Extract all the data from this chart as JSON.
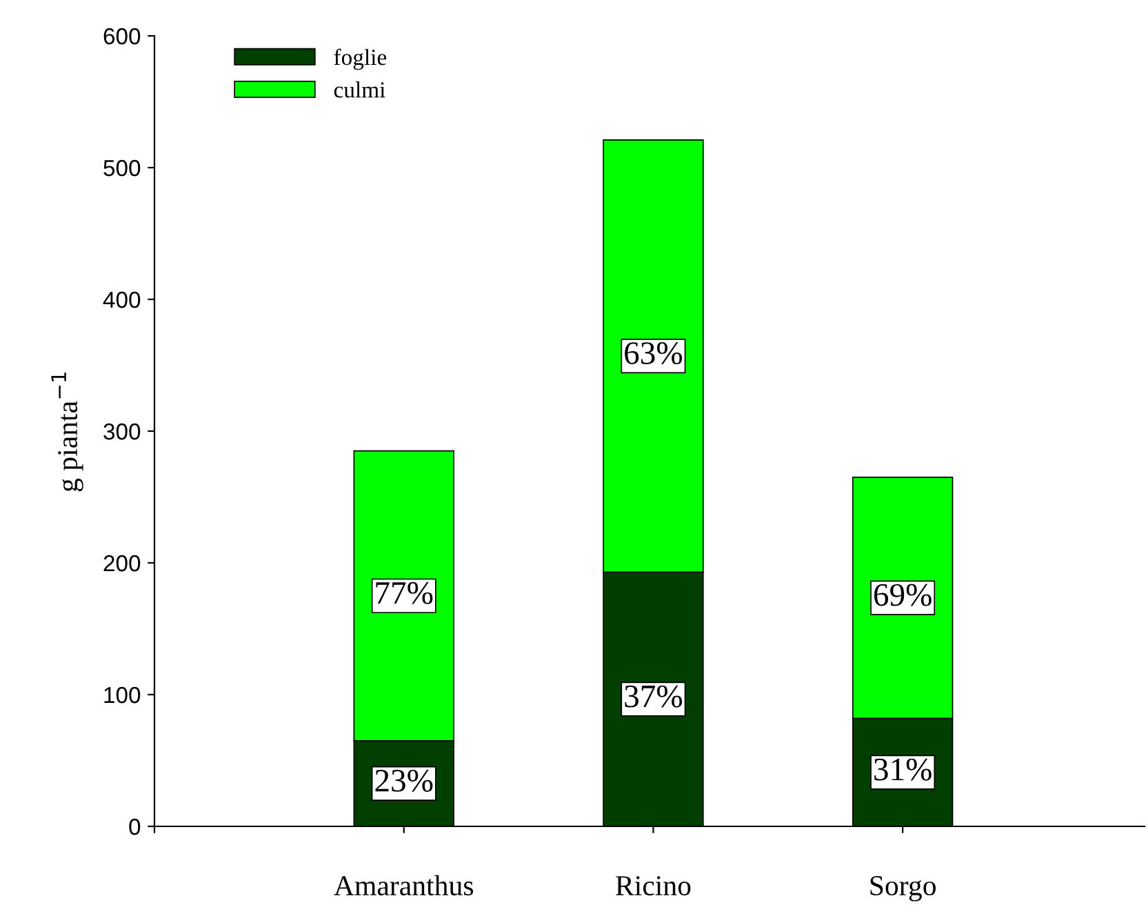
{
  "chart_data": {
    "type": "bar",
    "stacked": true,
    "ylabel": "g pianta$^{−1}$",
    "categories": [
      "Amaranthus",
      "Ricino",
      "Sorgo"
    ],
    "series": [
      {
        "name": "foglie",
        "color": "#003f00",
        "values": [
          65,
          193,
          82
        ]
      },
      {
        "name": "culmi",
        "color": "#00ff00",
        "values": [
          220,
          328,
          183
        ]
      }
    ],
    "annotations": [
      "23%",
      "37%",
      "31%",
      "77%",
      "63%",
      "69%"
    ],
    "ylim": [
      0,
      600
    ],
    "yticks": [
      0,
      100,
      200,
      300,
      400,
      500,
      600
    ],
    "grid": false,
    "legend": "top left"
  }
}
